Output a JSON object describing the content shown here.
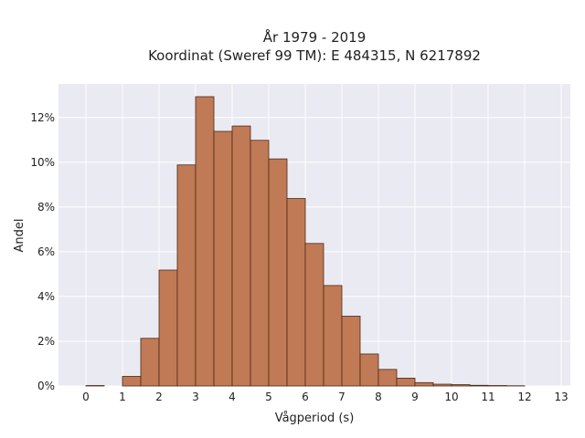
{
  "chart_data": {
    "type": "bar",
    "title": "År 1979 - 2019",
    "subtitle": "Koordinat (Sweref 99 TM): E 484315, N 6217892",
    "xlabel": "Vågperiod (s)",
    "ylabel": "Andel",
    "xlim": [
      -0.75,
      13.25
    ],
    "ylim": [
      0,
      13.5
    ],
    "x_ticks": [
      0,
      1,
      2,
      3,
      4,
      5,
      6,
      7,
      8,
      9,
      10,
      11,
      12,
      13
    ],
    "y_ticks": [
      0,
      2,
      4,
      6,
      8,
      10,
      12
    ],
    "y_tick_labels": [
      "0%",
      "2%",
      "4%",
      "6%",
      "8%",
      "10%",
      "12%"
    ],
    "bin_width": 0.5,
    "bins": [
      {
        "x0": 0.0,
        "value": 0.02
      },
      {
        "x0": 0.5,
        "value": 0.0
      },
      {
        "x0": 1.0,
        "value": 0.43
      },
      {
        "x0": 1.5,
        "value": 2.13
      },
      {
        "x0": 2.0,
        "value": 5.18
      },
      {
        "x0": 2.5,
        "value": 9.88
      },
      {
        "x0": 3.0,
        "value": 12.93
      },
      {
        "x0": 3.5,
        "value": 11.38
      },
      {
        "x0": 4.0,
        "value": 11.62
      },
      {
        "x0": 4.5,
        "value": 10.98
      },
      {
        "x0": 5.0,
        "value": 10.15
      },
      {
        "x0": 5.5,
        "value": 8.38
      },
      {
        "x0": 6.0,
        "value": 6.37
      },
      {
        "x0": 6.5,
        "value": 4.49
      },
      {
        "x0": 7.0,
        "value": 3.12
      },
      {
        "x0": 7.5,
        "value": 1.43
      },
      {
        "x0": 8.0,
        "value": 0.74
      },
      {
        "x0": 8.5,
        "value": 0.35
      },
      {
        "x0": 9.0,
        "value": 0.15
      },
      {
        "x0": 9.5,
        "value": 0.08
      },
      {
        "x0": 10.0,
        "value": 0.06
      },
      {
        "x0": 10.5,
        "value": 0.03
      },
      {
        "x0": 11.0,
        "value": 0.02
      },
      {
        "x0": 11.5,
        "value": 0.01
      }
    ],
    "grid": true,
    "colors": {
      "bar_fill": "#c07a55",
      "bar_edge": "#4a2a18",
      "plot_background": "#eaeaf2",
      "grid": "#ffffff"
    }
  }
}
